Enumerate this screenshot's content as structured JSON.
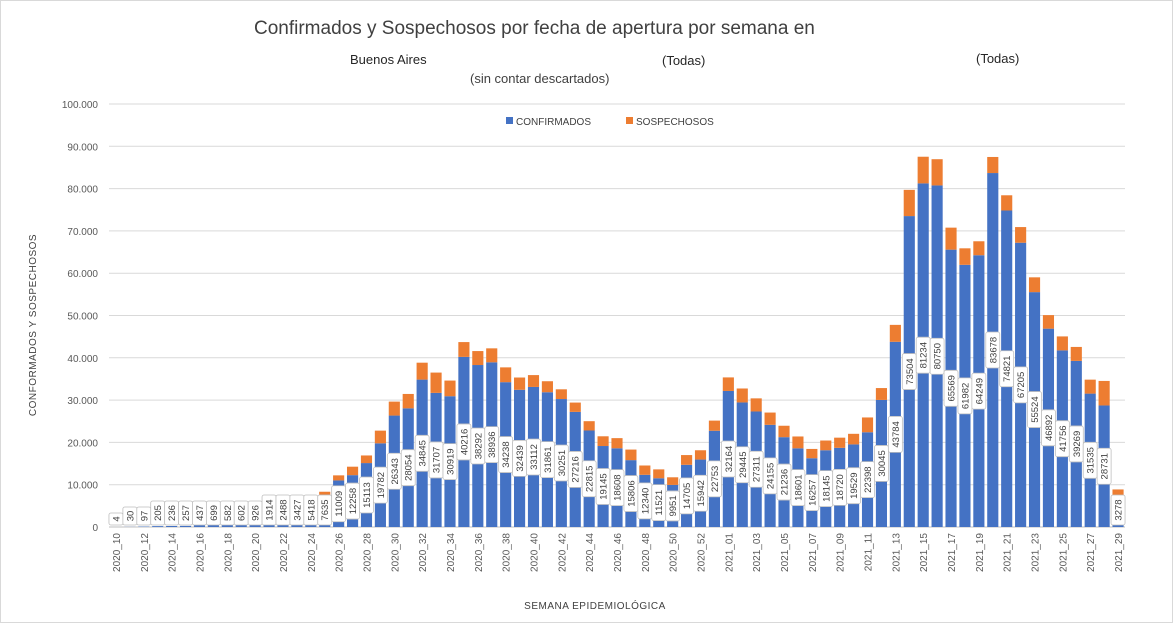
{
  "header": {
    "title": "Confirmados y Sospechosos por fecha de apertura por semana en",
    "location": "Buenos Aires",
    "filter_1": "(Todas)",
    "filter_2": "(Todas)",
    "subtitle": "(sin contar descartados)"
  },
  "chart_data": {
    "type": "bar",
    "stacked": true,
    "xlabel": "SEMANA EPIDEMIOLÓGICA",
    "ylabel": "CONFORMADOS Y SOSPECHOSOS",
    "ylim": [
      0,
      100000
    ],
    "yticks": [
      "0",
      "10.000",
      "20.000",
      "30.000",
      "40.000",
      "50.000",
      "60.000",
      "70.000",
      "80.000",
      "90.000",
      "100.000"
    ],
    "legend_position": "top",
    "gridlines": true,
    "categories": [
      "2020_10",
      "2020_11",
      "2020_12",
      "2020_13",
      "2020_14",
      "2020_15",
      "2020_16",
      "2020_17",
      "2020_18",
      "2020_19",
      "2020_20",
      "2020_21",
      "2020_22",
      "2020_23",
      "2020_24",
      "2020_25",
      "2020_26",
      "2020_27",
      "2020_28",
      "2020_29",
      "2020_30",
      "2020_31",
      "2020_32",
      "2020_33",
      "2020_34",
      "2020_35",
      "2020_36",
      "2020_37",
      "2020_38",
      "2020_39",
      "2020_40",
      "2020_41",
      "2020_42",
      "2020_43",
      "2020_44",
      "2020_45",
      "2020_46",
      "2020_47",
      "2020_48",
      "2020_49",
      "2020_50",
      "2020_51",
      "2020_52",
      "2020_53",
      "2021_01",
      "2021_02",
      "2021_03",
      "2021_04",
      "2021_05",
      "2021_06",
      "2021_07",
      "2021_08",
      "2021_09",
      "2021_10",
      "2021_11",
      "2021_12",
      "2021_13",
      "2021_14",
      "2021_15",
      "2021_16",
      "2021_17",
      "2021_18",
      "2021_19",
      "2021_20",
      "2021_21",
      "2021_22",
      "2021_23",
      "2021_24",
      "2021_25",
      "2021_26",
      "2021_27",
      "2021_28",
      "2021_29"
    ],
    "series": [
      {
        "name": "CONFIRMADOS",
        "color": "#4472c4",
        "values": [
          4,
          30,
          97,
          205,
          236,
          257,
          437,
          699,
          582,
          602,
          926,
          1914,
          2488,
          3427,
          5418,
          7635,
          11009,
          12258,
          15113,
          19782,
          26343,
          28054,
          34845,
          31707,
          30919,
          40216,
          38292,
          38936,
          34238,
          32439,
          33112,
          31861,
          30251,
          27216,
          22815,
          19145,
          18608,
          15806,
          12340,
          11521,
          9951,
          14705,
          15942,
          22753,
          32164,
          29445,
          27311,
          24155,
          21236,
          18601,
          16257,
          18145,
          18720,
          19529,
          22398,
          30045,
          43784,
          73504,
          81234,
          80750,
          65569,
          61982,
          64249,
          83678,
          74821,
          67205,
          55524,
          46892,
          41756,
          39269,
          31535,
          28731,
          3278
        ]
      },
      {
        "name": "SOSPECHOSOS",
        "color": "#ed7d31",
        "values": [
          0,
          0,
          0,
          0,
          0,
          0,
          0,
          0,
          0,
          0,
          0,
          0,
          0,
          0,
          400,
          700,
          1200,
          2000,
          1800,
          3000,
          3300,
          3400,
          4000,
          4800,
          3700,
          3500,
          3300,
          3300,
          3500,
          2900,
          2800,
          2600,
          2300,
          2200,
          2200,
          2300,
          2400,
          2500,
          2200,
          2100,
          1800,
          2300,
          2200,
          2400,
          3200,
          3300,
          3100,
          2900,
          2700,
          2800,
          2200,
          2300,
          2400,
          2500,
          3500,
          2800,
          4000,
          6200,
          6300,
          6200,
          5200,
          3900,
          3300,
          3800,
          3600,
          3700,
          3500,
          3200,
          3300,
          3300,
          3300,
          5800,
          5600
        ]
      }
    ]
  }
}
